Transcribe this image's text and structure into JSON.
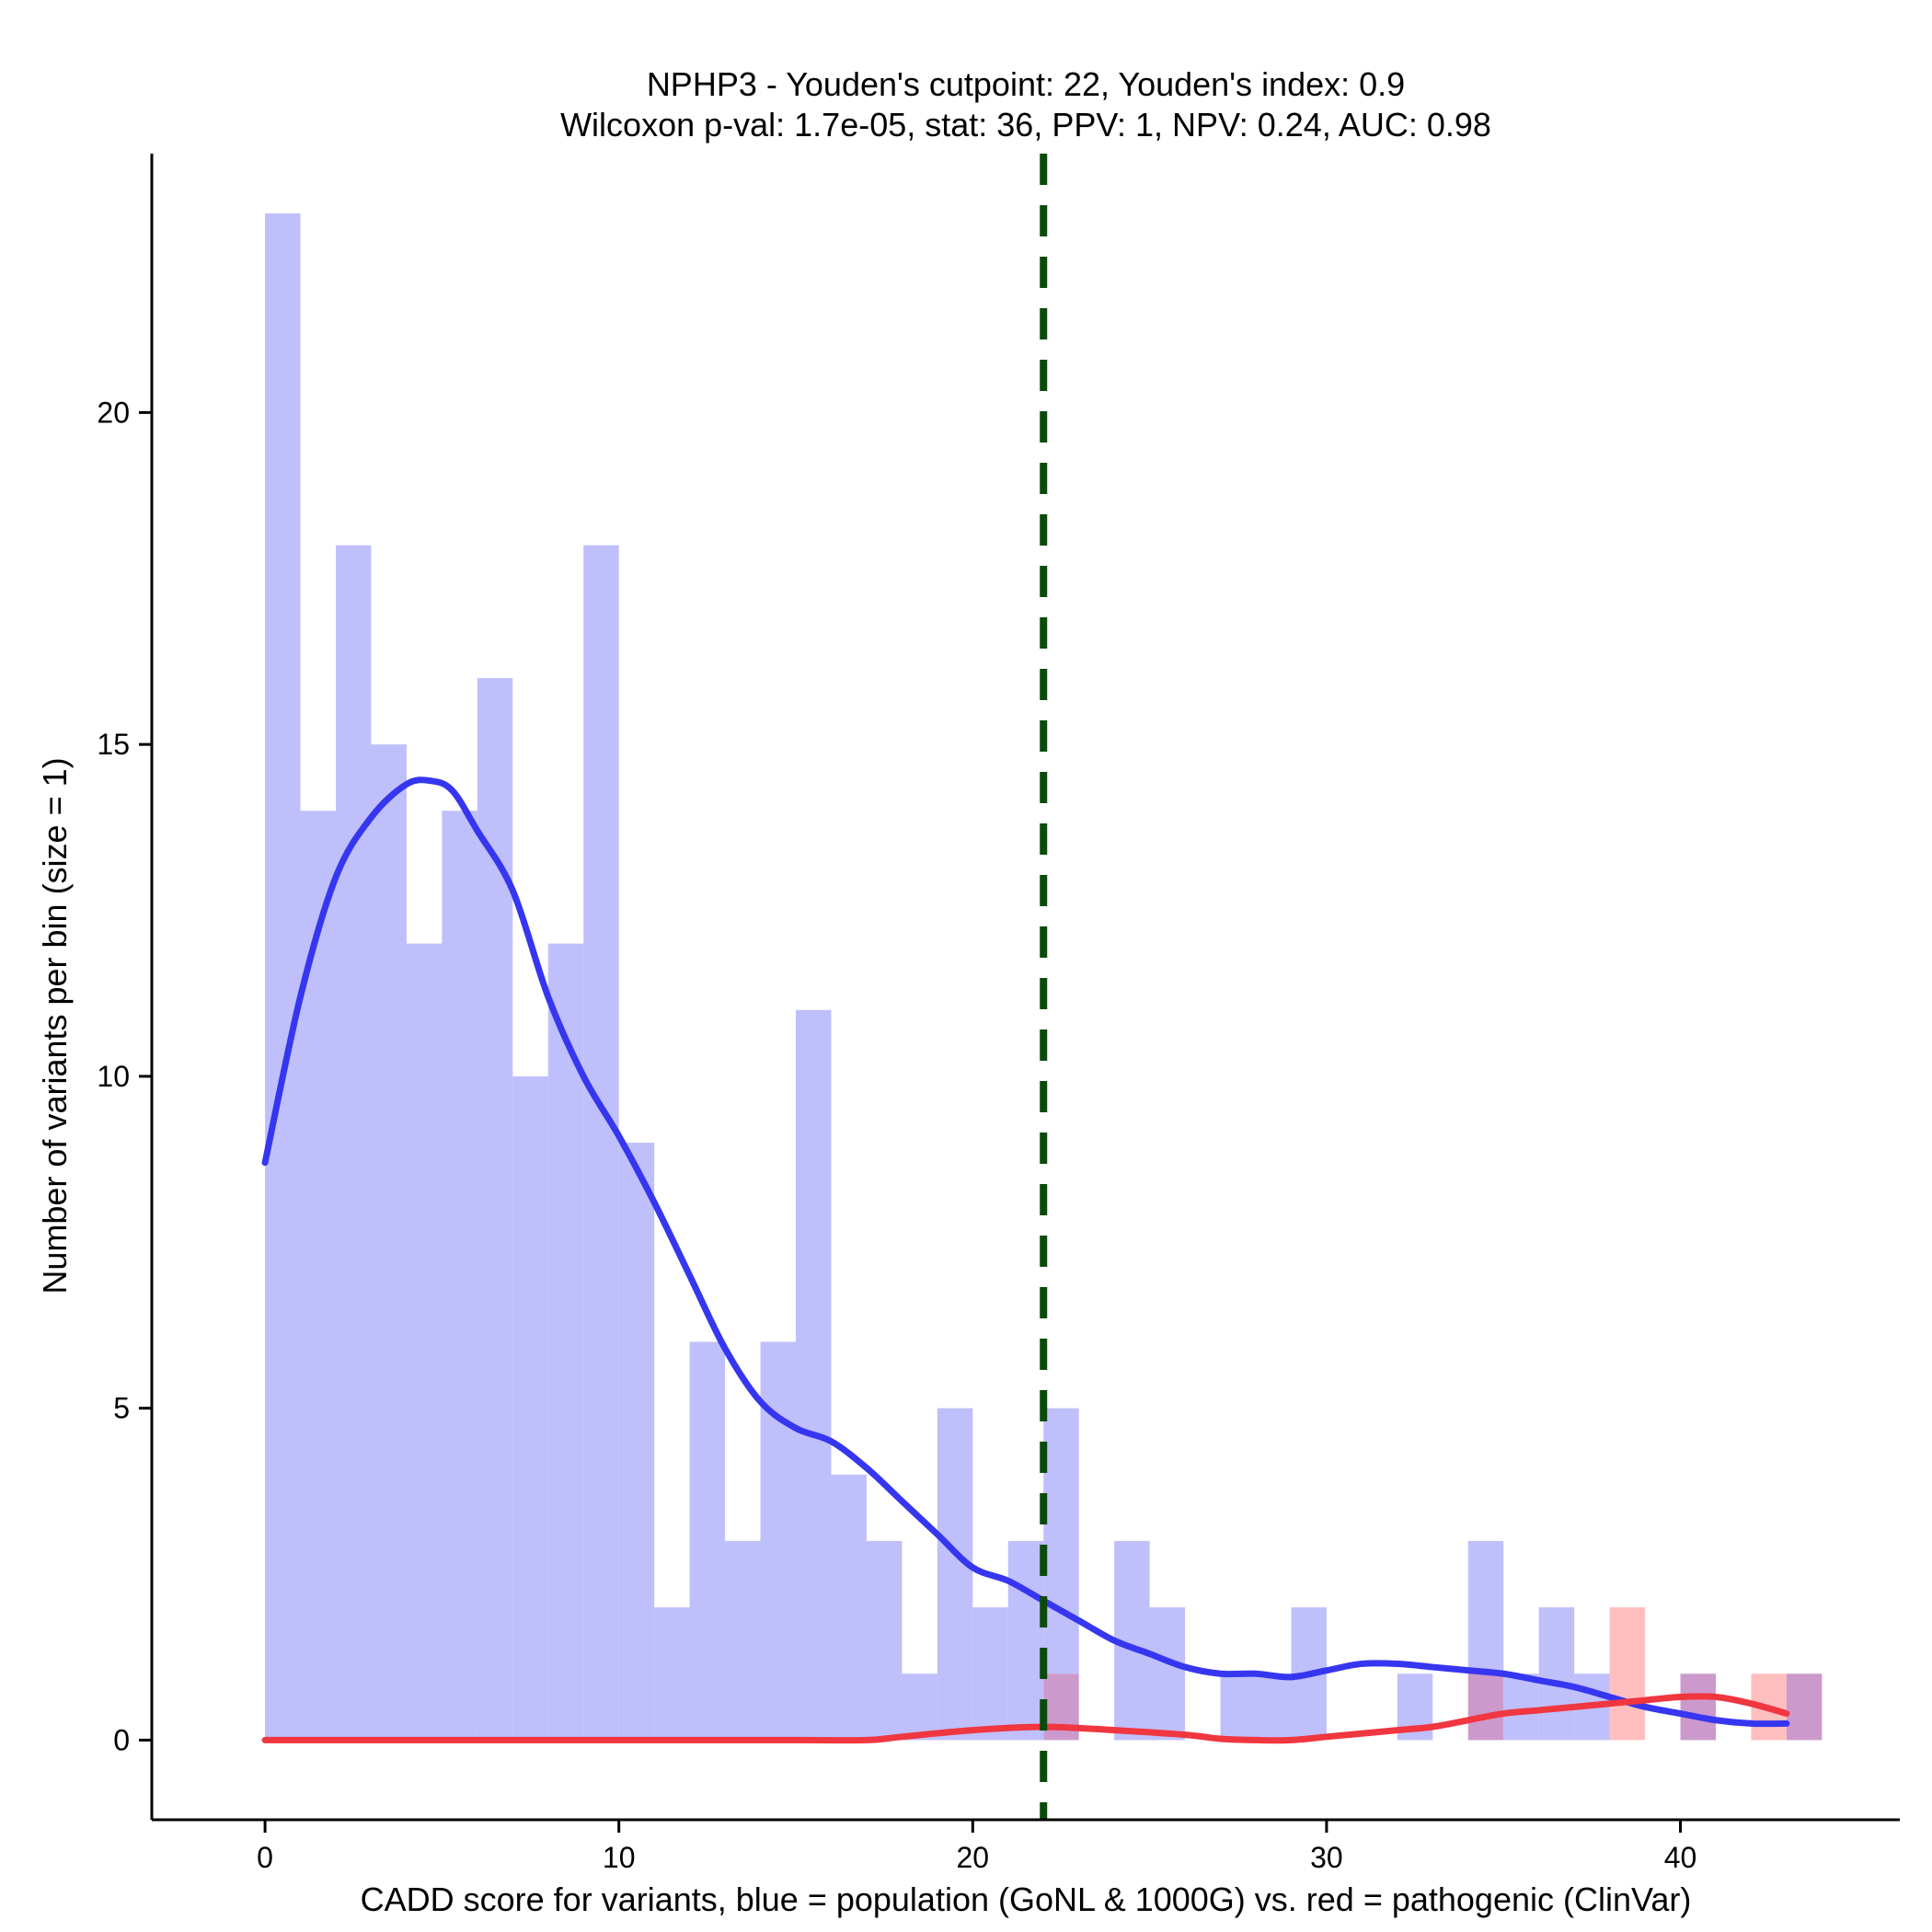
{
  "chart_data": {
    "type": "bar",
    "title": "NPHP3 - Youden's cutpoint: 22, Youden's index: 0.9",
    "subtitle": "Wilcoxon p-val: 1.7e-05, stat: 36, PPV: 1, NPV: 0.24, AUC: 0.98",
    "xlabel": "CADD score for variants, blue = population (GoNL & 1000G) vs. red = pathogenic (ClinVar)",
    "ylabel": "Number of variants per bin (size = 1)",
    "xlim": [
      -3.2,
      46.2
    ],
    "ylim": [
      -1.2,
      23.9
    ],
    "x_ticks": [
      0,
      10,
      20,
      30,
      40
    ],
    "y_ticks": [
      0,
      5,
      10,
      15,
      20
    ],
    "bin_width": 1,
    "cutpoint": 22,
    "colors": {
      "population_bar": "#bfbffb",
      "pathogenic_bar": "#ffbfbf",
      "overlap_bar": "#cc99cc",
      "population_curve": "#3636f0",
      "pathogenic_curve": "#f0363f",
      "cutpoint_line": "#0c4a0c"
    },
    "series": [
      {
        "key": "population",
        "bin_starts": [
          0,
          1,
          2,
          3,
          4,
          5,
          6,
          7,
          8,
          9,
          10,
          11,
          12,
          13,
          14,
          15,
          16,
          17,
          18,
          19,
          20,
          21,
          22,
          23,
          24,
          25,
          26,
          27,
          28,
          29,
          30,
          31,
          32,
          33,
          34,
          35,
          36,
          37,
          38,
          39,
          40,
          41,
          42,
          43
        ],
        "counts": [
          23,
          14,
          18,
          15,
          12,
          14,
          16,
          10,
          12,
          18,
          9,
          2,
          6,
          3,
          6,
          11,
          4,
          3,
          1,
          5,
          2,
          3,
          5,
          0,
          3,
          2,
          0,
          1,
          1,
          2,
          0,
          0,
          1,
          0,
          3,
          1,
          2,
          1,
          0,
          0,
          1,
          0,
          0,
          1
        ]
      },
      {
        "key": "pathogenic",
        "bin_starts": [
          0,
          1,
          2,
          3,
          4,
          5,
          6,
          7,
          8,
          9,
          10,
          11,
          12,
          13,
          14,
          15,
          16,
          17,
          18,
          19,
          20,
          21,
          22,
          23,
          24,
          25,
          26,
          27,
          28,
          29,
          30,
          31,
          32,
          33,
          34,
          35,
          36,
          37,
          38,
          39,
          40,
          41,
          42,
          43
        ],
        "counts": [
          0,
          0,
          0,
          0,
          0,
          0,
          0,
          0,
          0,
          0,
          0,
          0,
          0,
          0,
          0,
          0,
          0,
          0,
          0,
          0,
          0,
          0,
          1,
          0,
          0,
          0,
          0,
          0,
          0,
          0,
          0,
          0,
          0,
          0,
          1,
          0,
          0,
          0,
          2,
          0,
          1,
          0,
          1,
          1
        ]
      }
    ],
    "density_curves": [
      {
        "key": "population",
        "x": [
          0,
          1,
          2,
          3,
          4,
          4.7,
          5.3,
          6,
          7,
          8,
          9,
          10,
          11,
          12,
          13,
          14,
          15,
          16,
          17,
          18,
          19,
          20,
          21,
          22,
          23,
          24,
          25,
          26,
          27,
          28,
          29,
          30,
          31,
          32,
          33,
          34,
          35,
          36,
          37,
          38,
          39,
          40,
          41,
          42,
          43
        ],
        "y": [
          8.7,
          11.2,
          13.0,
          13.9,
          14.4,
          14.45,
          14.3,
          13.7,
          12.8,
          11.2,
          10.0,
          9.1,
          8.1,
          7.0,
          5.9,
          5.1,
          4.7,
          4.5,
          4.1,
          3.6,
          3.1,
          2.6,
          2.4,
          2.1,
          1.8,
          1.5,
          1.3,
          1.1,
          1.0,
          1.0,
          0.95,
          1.05,
          1.15,
          1.15,
          1.1,
          1.05,
          1.0,
          0.9,
          0.8,
          0.65,
          0.5,
          0.4,
          0.3,
          0.25,
          0.25
        ]
      },
      {
        "key": "pathogenic",
        "x": [
          0,
          5,
          10,
          15,
          17,
          18,
          20,
          22,
          24,
          26,
          27,
          28,
          29,
          30,
          31,
          32,
          33,
          34,
          35,
          36,
          37,
          38,
          39,
          40,
          41,
          42,
          43
        ],
        "y": [
          0,
          0,
          0,
          0,
          0,
          0.05,
          0.15,
          0.2,
          0.15,
          0.08,
          0.02,
          0,
          0,
          0.05,
          0.1,
          0.15,
          0.2,
          0.3,
          0.4,
          0.45,
          0.5,
          0.55,
          0.6,
          0.65,
          0.65,
          0.55,
          0.4
        ]
      }
    ]
  }
}
